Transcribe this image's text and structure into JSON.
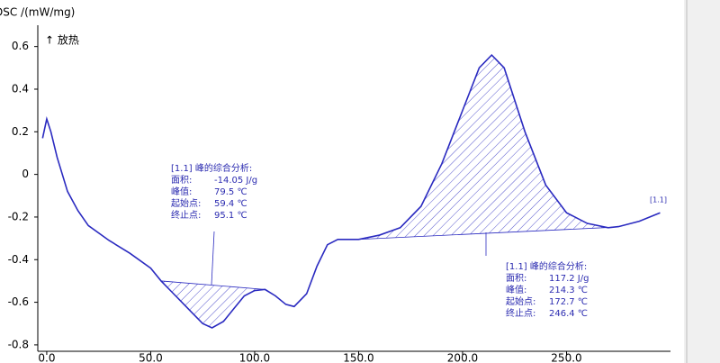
{
  "chart_data": {
    "type": "line",
    "y_label": "DSC /(mW/mg)",
    "direction_label": "↑ 放热",
    "color": "#2a2ac0",
    "x": [
      -2,
      0,
      2,
      5,
      10,
      15,
      20,
      30,
      40,
      50,
      55,
      60,
      65,
      70,
      75,
      79.5,
      85,
      90,
      95,
      100,
      105,
      110,
      115,
      119,
      125,
      130,
      135,
      140,
      150,
      160,
      170,
      180,
      190,
      200,
      208,
      214,
      220,
      230,
      240,
      250,
      260,
      270,
      275,
      285,
      295
    ],
    "values": [
      0.17,
      0.26,
      0.2,
      0.08,
      -0.08,
      -0.17,
      -0.24,
      -0.31,
      -0.37,
      -0.44,
      -0.5,
      -0.55,
      -0.6,
      -0.65,
      -0.7,
      -0.72,
      -0.69,
      -0.63,
      -0.57,
      -0.545,
      -0.54,
      -0.57,
      -0.61,
      -0.62,
      -0.56,
      -0.43,
      -0.33,
      -0.305,
      -0.305,
      -0.285,
      -0.25,
      -0.15,
      0.05,
      0.3,
      0.5,
      0.56,
      0.5,
      0.2,
      -0.05,
      -0.18,
      -0.23,
      -0.25,
      -0.245,
      -0.22,
      -0.18
    ],
    "xlim": [
      -4.3,
      300
    ],
    "ylim": [
      -0.83,
      0.7
    ],
    "xticks": [
      {
        "value": 0,
        "label": "0.0"
      },
      {
        "value": 50,
        "label": "50.0"
      },
      {
        "value": 100,
        "label": "100.0"
      },
      {
        "value": 150,
        "label": "150.0"
      },
      {
        "value": 200,
        "label": "200.0"
      },
      {
        "value": 250,
        "label": "250.0"
      }
    ],
    "yticks": [
      0.6,
      0.4,
      0.2,
      0,
      -0.2,
      -0.4,
      -0.6,
      -0.8
    ],
    "peaks": [
      {
        "start": 55,
        "end": 105,
        "lines": [
          [
            "[1.1] 峰的综合分析:",
            ""
          ],
          [
            "面积:",
            "-14.05 J/g"
          ],
          [
            "峰值:",
            "79.5 ℃"
          ],
          [
            "起始点:",
            "59.4 ℃"
          ],
          [
            "终止点:",
            "95.1 ℃"
          ]
        ]
      },
      {
        "start": 150,
        "end": 272,
        "lines": [
          [
            "[1.1] 峰的综合分析:",
            ""
          ],
          [
            "面积:",
            "117.2 J/g"
          ],
          [
            "峰值:",
            "214.3 ℃"
          ],
          [
            "起始点:",
            "172.7 ℃"
          ],
          [
            "终止点:",
            "246.4 ℃"
          ]
        ]
      }
    ],
    "curve_label": "[1.1]"
  }
}
